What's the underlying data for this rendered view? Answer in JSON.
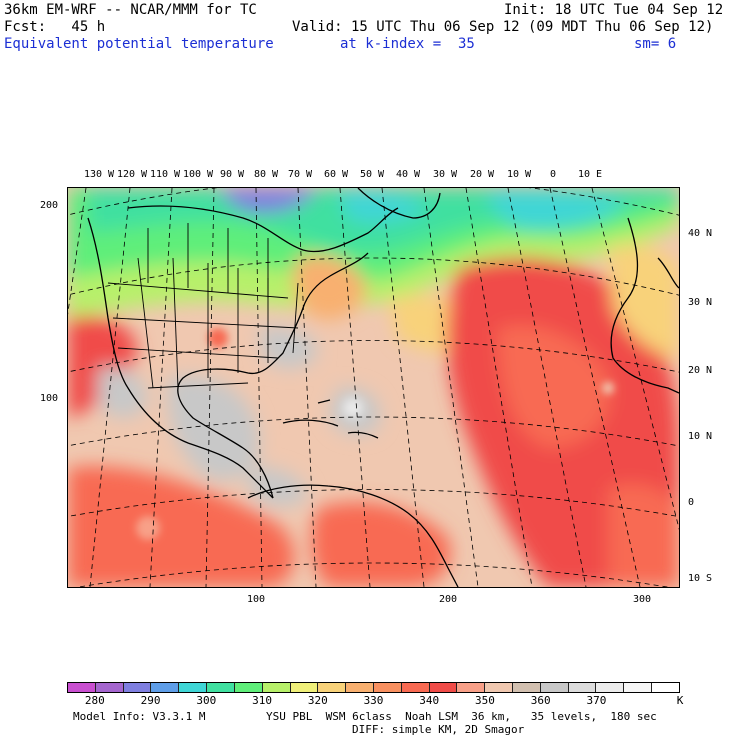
{
  "header": {
    "model": "36km EM-WRF -- NCAR/MMM for TC",
    "init": "Init: 18 UTC Tue 04 Sep 12",
    "fcst": "Fcst:   45 h",
    "valid": "Valid: 15 UTC Thu 06 Sep 12 (09 MDT Thu 06 Sep 12)",
    "field": "Equivalent potential temperature",
    "kindex": "at k-index =  35",
    "sm": "sm= 6"
  },
  "map": {
    "lon_labels": [
      "130 W",
      "120 W",
      "110 W",
      "100 W",
      "90 W",
      "80 W",
      "70 W",
      "60 W",
      "50 W",
      "40 W",
      "30 W",
      "20 W",
      "10 W",
      "0",
      "10 E"
    ],
    "lat_labels": [
      "40 N",
      "30 N",
      "20 N",
      "10 N",
      "0",
      "10 S"
    ],
    "grid_y_labels": [
      "200",
      "100"
    ],
    "grid_x_labels": [
      "100",
      "200",
      "300"
    ]
  },
  "colorbar": {
    "colors": [
      "#c94fd0",
      "#a566cf",
      "#7f7fe0",
      "#5f9ee8",
      "#3fd6d6",
      "#40e0a0",
      "#5fee7a",
      "#b7f06a",
      "#f0f07a",
      "#f8d27a",
      "#f8b070",
      "#f89060",
      "#f86a52",
      "#f04c48",
      "#f8a088",
      "#f0c8b0",
      "#d2c0b0",
      "#c8c8c8",
      "#dcdcdc",
      "#ececec",
      "#f6f6f6",
      "#ffffff"
    ],
    "labels": [
      "280",
      "290",
      "300",
      "310",
      "320",
      "330",
      "340",
      "350",
      "360",
      "370"
    ],
    "unit": "K"
  },
  "footer": {
    "model_info": "Model Info: V3.3.1 M",
    "physics1": "YSU PBL  WSM 6class  Noah LSM  36 km,   35 levels,  180 sec",
    "physics2": "DIFF: simple KM, 2D Smagor"
  }
}
